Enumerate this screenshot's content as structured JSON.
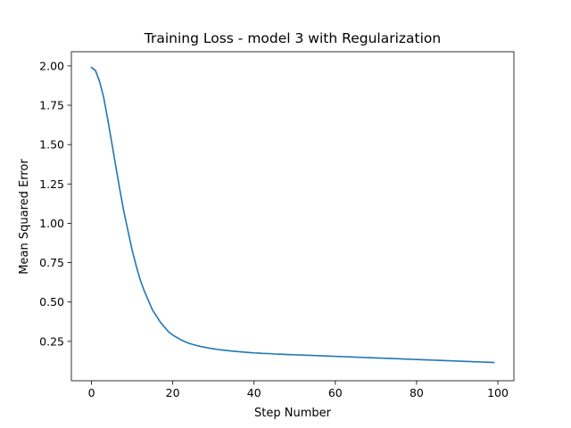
{
  "chart_data": {
    "type": "line",
    "title": "Training Loss - model 3 with Regularization",
    "xlabel": "Step Number",
    "ylabel": "Mean Squared Error",
    "xlim": [
      -4.95,
      103.95
    ],
    "ylim": [
      0.0,
      2.09
    ],
    "xticks": [
      0,
      20,
      40,
      60,
      80,
      100
    ],
    "xtick_labels": [
      "0",
      "20",
      "40",
      "60",
      "80",
      "100"
    ],
    "yticks": [
      0.25,
      0.5,
      0.75,
      1.0,
      1.25,
      1.5,
      1.75,
      2.0
    ],
    "ytick_labels": [
      "0.25",
      "0.50",
      "0.75",
      "1.00",
      "1.25",
      "1.50",
      "1.75",
      "2.00"
    ],
    "grid": false,
    "series": [
      {
        "color": "#1f77b4",
        "x": [
          0,
          1,
          2,
          3,
          4,
          5,
          6,
          7,
          8,
          9,
          10,
          11,
          12,
          13,
          14,
          15,
          16,
          17,
          18,
          19,
          20,
          21,
          22,
          23,
          24,
          25,
          26,
          27,
          28,
          29,
          30,
          31,
          32,
          33,
          34,
          35,
          36,
          37,
          38,
          39,
          40,
          41,
          42,
          43,
          44,
          45,
          46,
          47,
          48,
          49,
          50,
          51,
          52,
          53,
          54,
          55,
          56,
          57,
          58,
          59,
          60,
          61,
          62,
          63,
          64,
          65,
          66,
          67,
          68,
          69,
          70,
          71,
          72,
          73,
          74,
          75,
          76,
          77,
          78,
          79,
          80,
          81,
          82,
          83,
          84,
          85,
          86,
          87,
          88,
          89,
          90,
          91,
          92,
          93,
          94,
          95,
          96,
          97,
          98,
          99
        ],
        "y": [
          1.99,
          1.97,
          1.9,
          1.8,
          1.66,
          1.51,
          1.36,
          1.21,
          1.07,
          0.95,
          0.83,
          0.73,
          0.64,
          0.57,
          0.51,
          0.45,
          0.41,
          0.37,
          0.34,
          0.31,
          0.29,
          0.275,
          0.26,
          0.248,
          0.238,
          0.23,
          0.223,
          0.217,
          0.212,
          0.207,
          0.203,
          0.199,
          0.196,
          0.193,
          0.19,
          0.187,
          0.185,
          0.183,
          0.181,
          0.179,
          0.177,
          0.176,
          0.174,
          0.173,
          0.172,
          0.17,
          0.169,
          0.168,
          0.167,
          0.166,
          0.165,
          0.164,
          0.163,
          0.162,
          0.161,
          0.16,
          0.159,
          0.158,
          0.157,
          0.156,
          0.155,
          0.154,
          0.153,
          0.152,
          0.151,
          0.15,
          0.149,
          0.148,
          0.147,
          0.146,
          0.145,
          0.144,
          0.143,
          0.142,
          0.141,
          0.14,
          0.139,
          0.138,
          0.137,
          0.136,
          0.135,
          0.134,
          0.133,
          0.132,
          0.131,
          0.13,
          0.129,
          0.128,
          0.127,
          0.126,
          0.125,
          0.124,
          0.123,
          0.122,
          0.121,
          0.12,
          0.119,
          0.118,
          0.117,
          0.116
        ]
      }
    ]
  }
}
